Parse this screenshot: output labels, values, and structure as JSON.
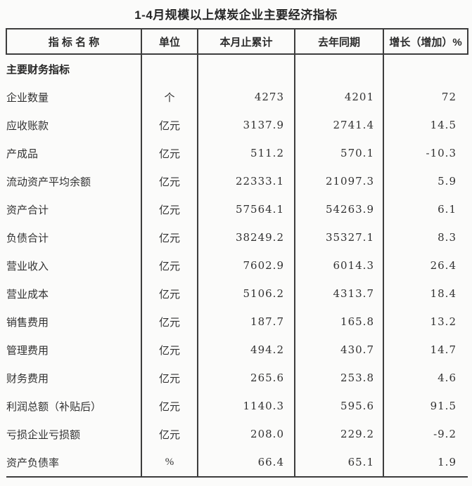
{
  "title": "1-4月规模以上煤炭企业主要经济指标",
  "colors": {
    "background": "#fbfbfa",
    "border": "#3d3d3d",
    "text": "#313131"
  },
  "table": {
    "headers": [
      "指 标 名 称",
      "单位",
      "本月止累计",
      "去年同期",
      "增长（增加）%"
    ],
    "section_header": "主要财务指标",
    "rows": [
      {
        "name": "企业数量",
        "unit": "个",
        "current": "4273",
        "last_year": "4201",
        "growth": "72"
      },
      {
        "name": "应收账款",
        "unit": "亿元",
        "current": "3137.9",
        "last_year": "2741.4",
        "growth": "14.5"
      },
      {
        "name": "产成品",
        "unit": "亿元",
        "current": "511.2",
        "last_year": "570.1",
        "growth": "-10.3"
      },
      {
        "name": "流动资产平均余额",
        "unit": "亿元",
        "current": "22333.1",
        "last_year": "21097.3",
        "growth": "5.9"
      },
      {
        "name": "资产合计",
        "unit": "亿元",
        "current": "57564.1",
        "last_year": "54263.9",
        "growth": "6.1"
      },
      {
        "name": "负债合计",
        "unit": "亿元",
        "current": "38249.2",
        "last_year": "35327.1",
        "growth": "8.3"
      },
      {
        "name": "营业收入",
        "unit": "亿元",
        "current": "7602.9",
        "last_year": "6014.3",
        "growth": "26.4"
      },
      {
        "name": "营业成本",
        "unit": "亿元",
        "current": "5106.2",
        "last_year": "4313.7",
        "growth": "18.4"
      },
      {
        "name": "销售费用",
        "unit": "亿元",
        "current": "187.7",
        "last_year": "165.8",
        "growth": "13.2"
      },
      {
        "name": "管理费用",
        "unit": "亿元",
        "current": "494.2",
        "last_year": "430.7",
        "growth": "14.7"
      },
      {
        "name": "财务费用",
        "unit": "亿元",
        "current": "265.6",
        "last_year": "253.8",
        "growth": "4.6"
      },
      {
        "name": "利润总额（补贴后）",
        "unit": "亿元",
        "current": "1140.3",
        "last_year": "595.6",
        "growth": "91.5"
      },
      {
        "name": "亏损企业亏损额",
        "unit": "亿元",
        "current": "208.0",
        "last_year": "229.2",
        "growth": "-9.2"
      },
      {
        "name": "资产负债率",
        "unit": "%",
        "current": "66.4",
        "last_year": "65.1",
        "growth": "1.9"
      }
    ]
  }
}
